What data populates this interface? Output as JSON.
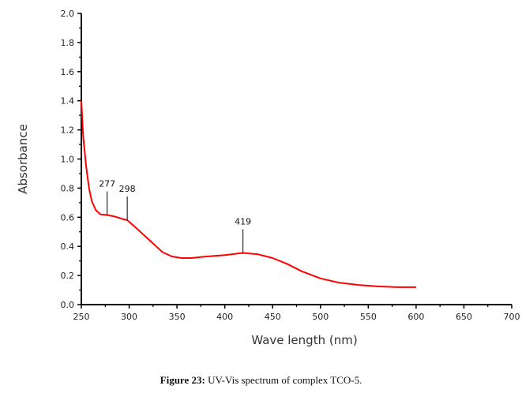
{
  "chart_data": {
    "type": "line",
    "title": "",
    "xlabel": "Wave length (nm)",
    "ylabel": "Absorbance",
    "xlim": [
      250,
      700
    ],
    "ylim": [
      0,
      2.0
    ],
    "xticks": [
      250,
      300,
      350,
      400,
      450,
      500,
      550,
      600,
      650,
      700
    ],
    "yticks": [
      "0.0",
      "0.2",
      "0.4",
      "0.6",
      "0.8",
      "1.0",
      "1.2",
      "1.4",
      "1.6",
      "1.8",
      "2.0"
    ],
    "grid": false,
    "series": [
      {
        "name": "TCO-5",
        "color": "#ff0000",
        "x": [
          250,
          252,
          255,
          258,
          261,
          265,
          270,
          277,
          285,
          292,
          298,
          305,
          315,
          325,
          335,
          345,
          355,
          365,
          380,
          400,
          419,
          435,
          450,
          465,
          480,
          500,
          520,
          540,
          560,
          580,
          600
        ],
        "y": [
          1.4,
          1.15,
          0.95,
          0.8,
          0.71,
          0.65,
          0.62,
          0.615,
          0.605,
          0.59,
          0.58,
          0.54,
          0.48,
          0.42,
          0.36,
          0.33,
          0.32,
          0.32,
          0.33,
          0.34,
          0.355,
          0.345,
          0.32,
          0.28,
          0.23,
          0.18,
          0.15,
          0.135,
          0.125,
          0.12,
          0.12
        ]
      }
    ],
    "annotations": [
      {
        "label": "277",
        "x": 277,
        "y": 0.615
      },
      {
        "label": "298",
        "x": 298,
        "y": 0.58
      },
      {
        "label": "419",
        "x": 419,
        "y": 0.355
      }
    ]
  },
  "caption": {
    "bold": "Figure 23:",
    "text": " UV-Vis spectrum of complex TCO-5."
  }
}
